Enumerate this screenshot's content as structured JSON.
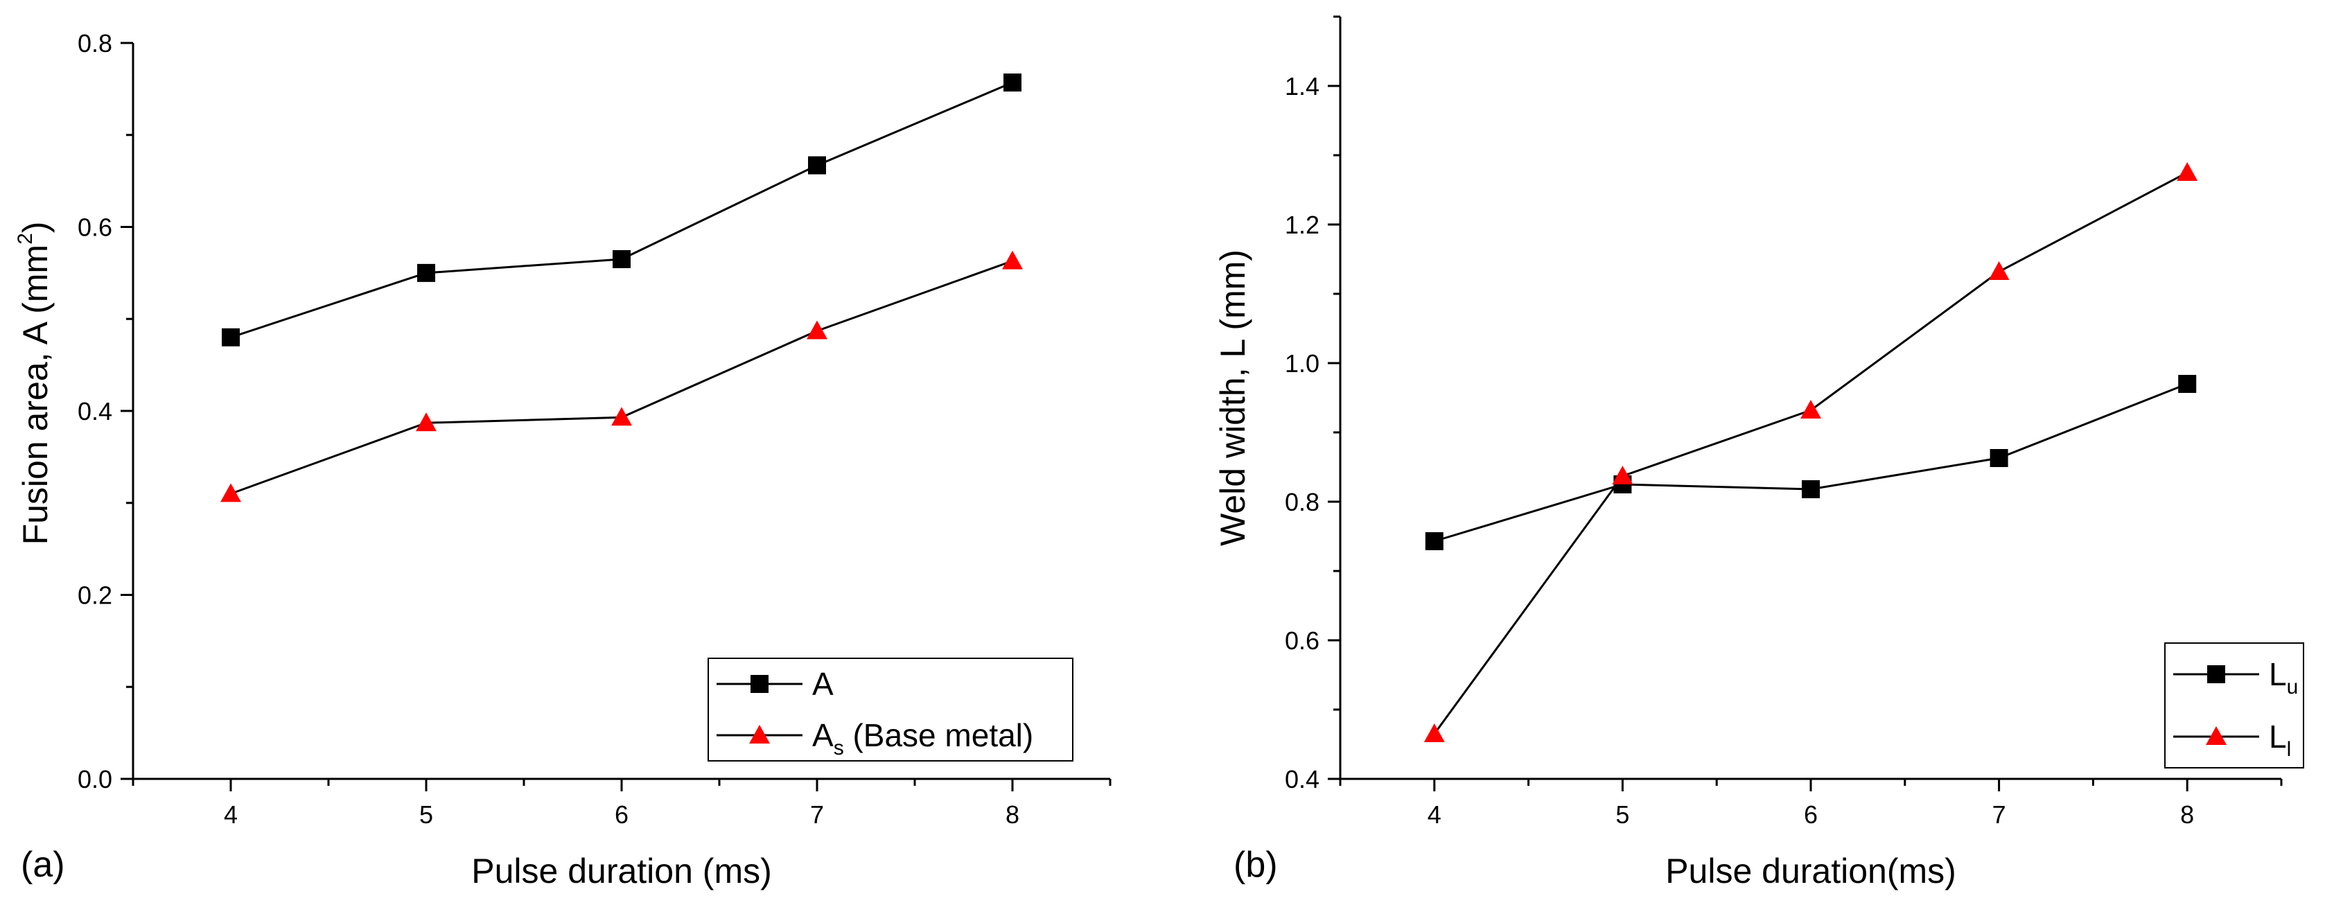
{
  "chart_data": [
    {
      "type": "line",
      "panel_label": "(a)",
      "xlabel": "Pulse duration (ms)",
      "ylabel": "Fusion area, A (mm",
      "ylabel_superscript": "2",
      "ylabel_suffix": ")",
      "x": [
        4,
        5,
        6,
        7,
        8
      ],
      "xlim": [
        3.5,
        8.5
      ],
      "ylim": [
        0,
        0.8
      ],
      "xticks": [
        "4",
        "5",
        "6",
        "7",
        "8"
      ],
      "yticks": [
        "0.0",
        "0.2",
        "0.4",
        "0.6",
        "0.8"
      ],
      "grid": false,
      "legend_position": "bottom-right",
      "series": [
        {
          "name": "A",
          "name_main": "A",
          "name_sub": "",
          "name_rest": "",
          "marker": "square",
          "color": "#000000",
          "values": [
            0.48,
            0.55,
            0.565,
            0.667,
            0.757
          ]
        },
        {
          "name": "As (Base metal)",
          "name_main": "A",
          "name_sub": "s",
          "name_rest": " (Base metal)",
          "marker": "triangle",
          "color": "#ff0000",
          "values": [
            0.31,
            0.387,
            0.393,
            0.487,
            0.563
          ]
        }
      ]
    },
    {
      "type": "line",
      "panel_label": "(b)",
      "xlabel": "Pulse duration(ms)",
      "ylabel": "Weld width, L (mm)",
      "ylabel_superscript": "",
      "ylabel_suffix": "",
      "x": [
        4,
        5,
        6,
        7,
        8
      ],
      "xlim": [
        3.5,
        8.5
      ],
      "ylim": [
        0.4,
        1.5
      ],
      "xticks": [
        "4",
        "5",
        "6",
        "7",
        "8"
      ],
      "yticks": [
        "0.4",
        "0.6",
        "0.8",
        "1.0",
        "1.2",
        "1.4"
      ],
      "grid": false,
      "legend_position": "bottom-right",
      "series": [
        {
          "name": "Lu",
          "name_main": "L",
          "name_sub": "u",
          "name_rest": "",
          "marker": "square",
          "color": "#000000",
          "values": [
            0.743,
            0.825,
            0.818,
            0.863,
            0.97
          ]
        },
        {
          "name": "Ll",
          "name_main": "L",
          "name_sub": "l",
          "name_rest": "",
          "marker": "triangle",
          "color": "#ff0000",
          "values": [
            0.465,
            0.837,
            0.932,
            1.132,
            1.275
          ]
        }
      ]
    }
  ]
}
